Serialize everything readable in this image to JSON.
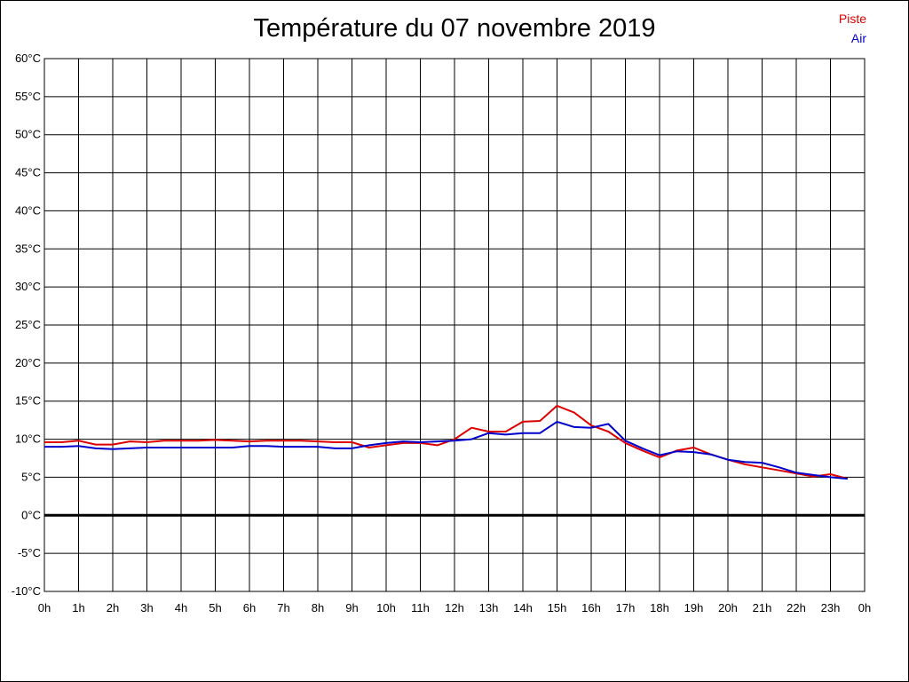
{
  "chart_data": {
    "type": "line",
    "title": "Température du 07 novembre 2019",
    "xlabel": "",
    "ylabel": "",
    "ylim": [
      -10,
      60
    ],
    "xlim": [
      0,
      24
    ],
    "grid": true,
    "legend_position": "top-right",
    "y_ticks": [
      "60°C",
      "55°C",
      "50°C",
      "45°C",
      "40°C",
      "35°C",
      "30°C",
      "25°C",
      "20°C",
      "15°C",
      "10°C",
      "5°C",
      "0°C",
      "-5°C",
      "-10°C"
    ],
    "x_ticks": [
      "0h",
      "1h",
      "2h",
      "3h",
      "4h",
      "5h",
      "6h",
      "7h",
      "8h",
      "9h",
      "10h",
      "11h",
      "12h",
      "13h",
      "14h",
      "15h",
      "16h",
      "17h",
      "18h",
      "19h",
      "20h",
      "21h",
      "22h",
      "23h",
      "0h"
    ],
    "x": [
      0,
      0.5,
      1,
      1.5,
      2,
      2.5,
      3,
      3.5,
      4,
      4.5,
      5,
      5.5,
      6,
      6.5,
      7,
      7.5,
      8,
      8.5,
      9,
      9.5,
      10,
      10.5,
      11,
      11.5,
      12,
      12.5,
      13,
      13.5,
      14,
      14.5,
      15,
      15.5,
      16,
      16.5,
      17,
      17.5,
      18,
      18.5,
      19,
      19.5,
      20,
      20.5,
      21,
      21.5,
      22,
      22.5,
      23,
      23.5
    ],
    "series": [
      {
        "name": "Piste",
        "color": "#dd0000",
        "values": [
          9.6,
          9.6,
          9.8,
          9.3,
          9.3,
          9.7,
          9.6,
          9.8,
          9.8,
          9.8,
          9.9,
          9.8,
          9.7,
          9.8,
          9.8,
          9.8,
          9.7,
          9.6,
          9.6,
          8.9,
          9.2,
          9.5,
          9.5,
          9.2,
          10.0,
          11.5,
          11.0,
          11.0,
          12.3,
          12.4,
          14.4,
          13.5,
          11.8,
          11.0,
          9.5,
          8.5,
          7.6,
          8.5,
          8.9,
          8.0,
          7.3,
          6.7,
          6.3,
          5.9,
          5.5,
          5.1,
          5.4,
          4.8
        ]
      },
      {
        "name": "Air",
        "color": "#0000cc",
        "values": [
          9.0,
          9.0,
          9.1,
          8.8,
          8.7,
          8.8,
          8.9,
          8.9,
          8.9,
          8.9,
          8.9,
          8.9,
          9.1,
          9.1,
          9.0,
          9.0,
          9.0,
          8.8,
          8.8,
          9.2,
          9.5,
          9.7,
          9.6,
          9.7,
          9.8,
          10.0,
          10.8,
          10.6,
          10.8,
          10.8,
          12.3,
          11.6,
          11.5,
          12.0,
          9.8,
          8.8,
          7.9,
          8.4,
          8.3,
          8.0,
          7.3,
          7.0,
          6.9,
          6.3,
          5.6,
          5.3,
          5.0,
          4.8
        ]
      }
    ]
  }
}
